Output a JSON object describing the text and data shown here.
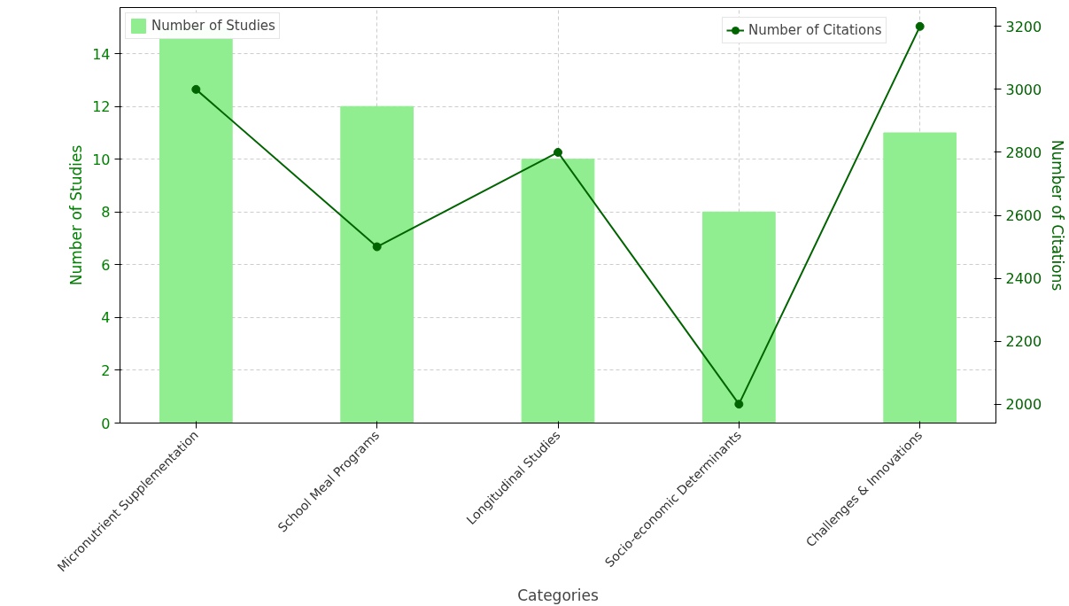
{
  "chart_data": {
    "type": "bar",
    "xlabel": "Categories",
    "ylabel": "Number of Studies",
    "y2label": "Number of Citations",
    "categories": [
      "Micronutrient Supplementation",
      "School Meal Programs",
      "Longitudinal Studies",
      "Socio-economic Determinants",
      "Challenges & Innovations"
    ],
    "series": [
      {
        "name": "Number of Studies",
        "type": "bar",
        "color": "#90ee90",
        "values": [
          15,
          12,
          10,
          8,
          11
        ]
      },
      {
        "name": "Number of Citations",
        "type": "line",
        "axis": "y2",
        "color": "#006400",
        "values": [
          3000,
          2500,
          2800,
          2000,
          3200
        ]
      }
    ],
    "ylim": [
      0,
      15.75
    ],
    "yticks": [
      0,
      2,
      4,
      6,
      8,
      10,
      12,
      14
    ],
    "y2lim": [
      1940,
      3260
    ],
    "y2ticks": [
      2000,
      2200,
      2400,
      2600,
      2800,
      3000,
      3200
    ],
    "grid": true,
    "legend": "top",
    "marker": "circle",
    "line_style": "solid"
  }
}
